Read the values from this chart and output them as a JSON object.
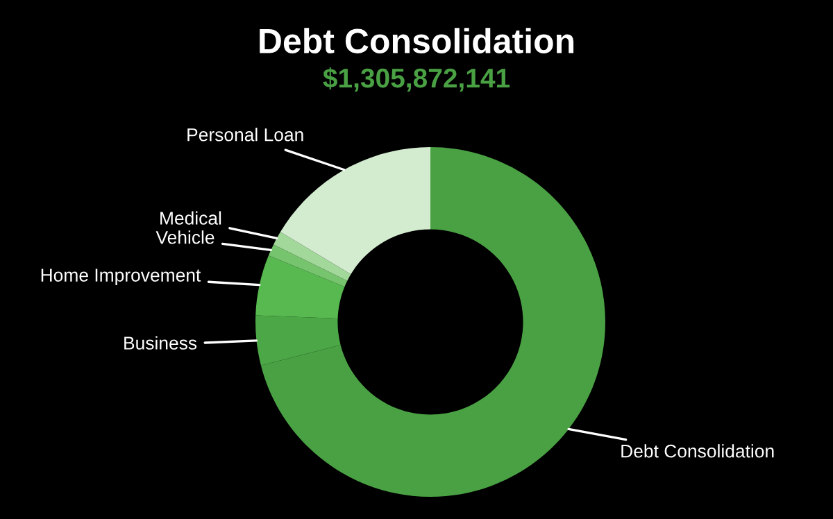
{
  "chart_data": {
    "type": "donut",
    "title": "Debt Consolidation",
    "subtitle": "$1,305,872,141",
    "categories": [
      "Debt Consolidation",
      "Business",
      "Home Improvement",
      "Vehicle",
      "Medical",
      "Personal Loan"
    ],
    "values": [
      71.0,
      4.6,
      5.6,
      1.1,
      1.3,
      16.4
    ],
    "colors": [
      "#4aa144",
      "#4ca847",
      "#57b94f",
      "#77c46f",
      "#a2d89a",
      "#d3ecd0"
    ],
    "legend": false
  }
}
